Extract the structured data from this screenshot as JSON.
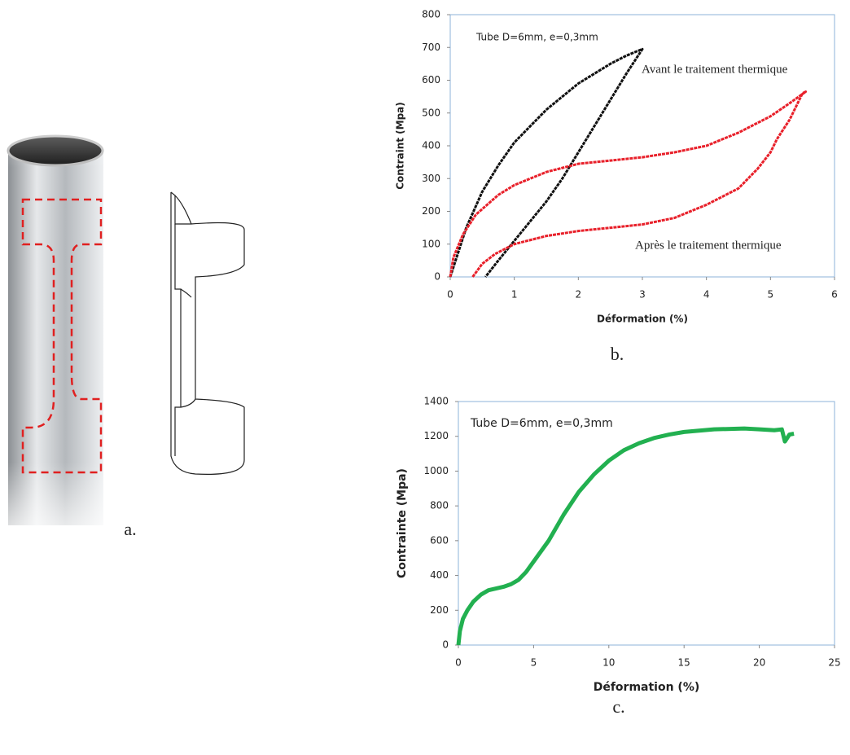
{
  "figure_a": {
    "label": "a."
  },
  "chart_data": [
    {
      "type": "line",
      "caption": "b.",
      "xlabel": "Déformation (%)",
      "ylabel": "Contraint (Mpa)",
      "annotations": [
        "Tube D=6mm, e=0,3mm",
        "Avant le traitement thermique",
        "Après le traitement thermique"
      ],
      "xlim": [
        0,
        6
      ],
      "xticks": [
        0,
        1,
        2,
        3,
        4,
        5,
        6
      ],
      "ylim": [
        0,
        800
      ],
      "yticks": [
        0,
        100,
        200,
        300,
        400,
        500,
        600,
        700,
        800
      ],
      "series": [
        {
          "color": "#111111",
          "x": [
            0,
            0.25,
            0.5,
            0.75,
            1,
            1.25,
            1.5,
            1.75,
            2,
            2.25,
            2.5,
            2.75,
            3,
            2.75,
            2.5,
            2.25,
            2,
            1.75,
            1.5,
            1.25,
            1,
            0.75,
            0.55
          ],
          "values": [
            0,
            150,
            260,
            340,
            410,
            460,
            510,
            550,
            590,
            620,
            650,
            675,
            695,
            620,
            540,
            460,
            380,
            300,
            230,
            170,
            110,
            50,
            0
          ]
        },
        {
          "color": "#e8202a",
          "x": [
            0,
            0.05,
            0.2,
            0.4,
            0.75,
            1,
            1.5,
            2,
            2.5,
            3,
            3.5,
            4,
            4.5,
            5,
            5.3,
            5.55,
            5.5,
            5.3,
            5.1,
            5,
            4.8,
            4.5,
            4,
            3.5,
            3,
            2.5,
            2,
            1.5,
            1,
            0.7,
            0.5,
            0.35
          ],
          "values": [
            0,
            60,
            130,
            190,
            250,
            280,
            320,
            345,
            355,
            365,
            380,
            400,
            440,
            490,
            530,
            565,
            560,
            480,
            420,
            380,
            330,
            270,
            220,
            180,
            160,
            150,
            140,
            125,
            100,
            70,
            40,
            0
          ]
        }
      ]
    },
    {
      "type": "line",
      "caption": "c.",
      "xlabel": "Déformation (%)",
      "ylabel": "Contrainte (Mpa)",
      "annotations": [
        "Tube D=6mm, e=0,3mm"
      ],
      "xlim": [
        0,
        25
      ],
      "xticks": [
        0,
        5,
        10,
        15,
        20,
        25
      ],
      "ylim": [
        0,
        1400
      ],
      "yticks": [
        0,
        200,
        400,
        600,
        800,
        1000,
        1200,
        1400
      ],
      "series": [
        {
          "color": "#22b050",
          "x": [
            0,
            0.1,
            0.3,
            0.6,
            1,
            1.5,
            2,
            3,
            3.5,
            4,
            4.5,
            5,
            6,
            7,
            8,
            9,
            10,
            11,
            12,
            13,
            14,
            15,
            17,
            19,
            20,
            21,
            21.5,
            21.7,
            22,
            22.3
          ],
          "values": [
            0,
            80,
            150,
            200,
            250,
            290,
            315,
            335,
            350,
            375,
            420,
            480,
            600,
            750,
            880,
            980,
            1060,
            1120,
            1160,
            1190,
            1210,
            1225,
            1240,
            1245,
            1240,
            1235,
            1240,
            1170,
            1210,
            1215
          ]
        }
      ]
    }
  ]
}
